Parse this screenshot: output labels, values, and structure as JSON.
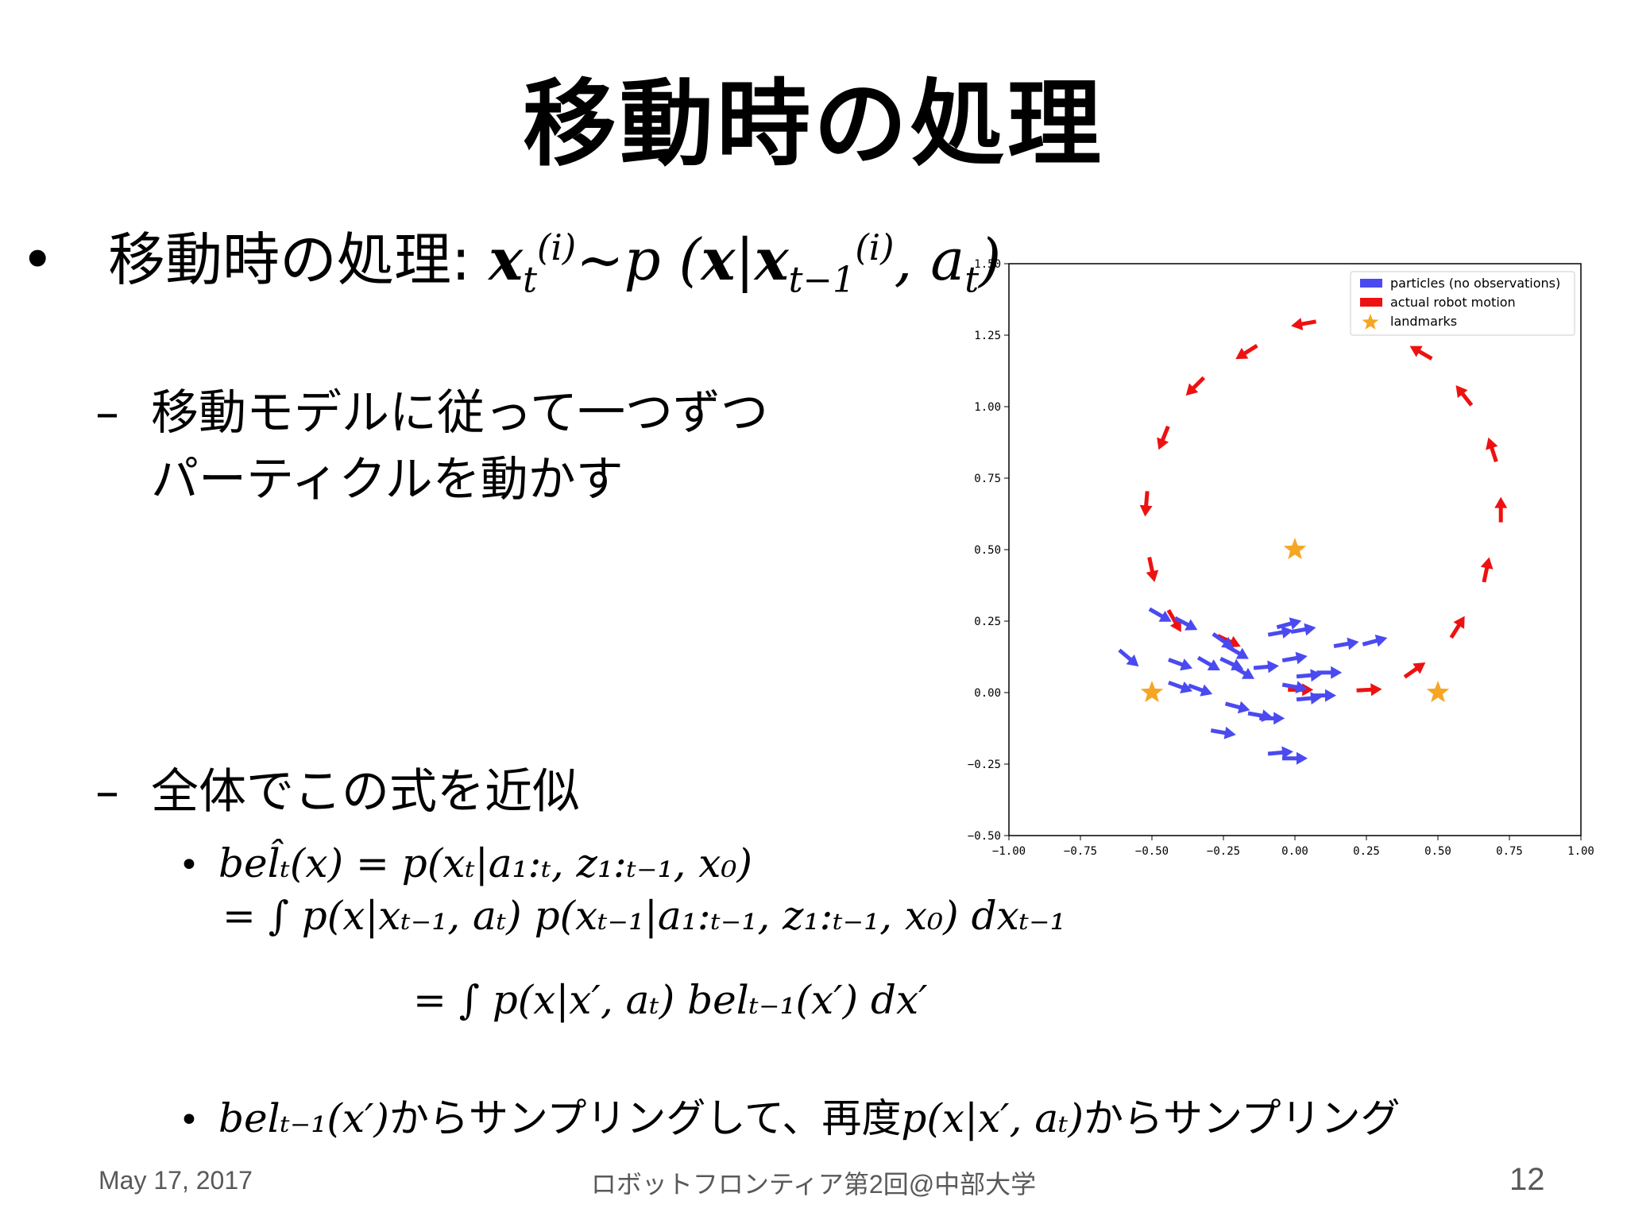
{
  "title": "移動時の処理",
  "bullet1": {
    "bullet": "•",
    "label": "移動時の処理: ",
    "formula": {
      "lhs": "x",
      "lhs_sub": "t",
      "lhs_sup": "(i)",
      "rel": "~p",
      "arg": "x",
      "cond": "x",
      "cond_sub": "t−1",
      "cond_sup": "(i)",
      "a": "a",
      "a_sub": "t"
    }
  },
  "sub1": {
    "dash": "–",
    "line1": "移動モデルに従って一つずつ",
    "line2": "パーティクルを動かす"
  },
  "sub2": {
    "dash": "–",
    "text": "全体でこの式を近似"
  },
  "eq1": {
    "bullet": "•",
    "line1": "bel̂ₜ(x) = p(xₜ|a₁:ₜ, z₁:ₜ₋₁, x₀)",
    "line2": "= ∫ p(x|xₜ₋₁, aₜ) p(xₜ₋₁|a₁:ₜ₋₁, z₁:ₜ₋₁, x₀) dxₜ₋₁",
    "line3": "= ∫ p(x|x′, aₜ) belₜ₋₁(x′) dx′"
  },
  "eq2": {
    "bullet": "•",
    "m1": "belₜ₋₁(x′)",
    "t1": "からサンプリングして、再度",
    "m2": "p(x|x′, aₜ)",
    "t2": "からサンプリング"
  },
  "footer": {
    "date": "May 17, 2017",
    "center": "ロボットフロンティア第2回@中部大学",
    "page": "12"
  },
  "chart_data": {
    "type": "quiver",
    "xlim": [
      -1.0,
      1.0
    ],
    "ylim": [
      -0.5,
      1.5
    ],
    "xticks": [
      "−1.00",
      "−0.75",
      "−0.50",
      "−0.25",
      "0.00",
      "0.25",
      "0.50",
      "0.75",
      "1.00"
    ],
    "yticks": [
      "1.50",
      "1.25",
      "1.00",
      "0.75",
      "0.50",
      "0.25",
      "0.00",
      "−0.25",
      "−0.50"
    ],
    "xtick_values": [
      -1.0,
      -0.75,
      -0.5,
      -0.25,
      0.0,
      0.25,
      0.5,
      0.75,
      1.0
    ],
    "ytick_values": [
      1.5,
      1.25,
      1.0,
      0.75,
      0.5,
      0.25,
      0.0,
      -0.25,
      -0.5
    ],
    "legend": {
      "placement": "top-right",
      "entries": [
        {
          "label": "particles (no observations)",
          "color": "#4a4af0",
          "marker": "rect"
        },
        {
          "label": "actual robot motion",
          "color": "#ee1111",
          "marker": "rect"
        },
        {
          "label": "landmarks",
          "color": "#f5a623",
          "marker": "star"
        }
      ]
    },
    "landmarks": [
      {
        "x": 0.0,
        "y": 0.5
      },
      {
        "x": -0.5,
        "y": 0.0
      },
      {
        "x": 0.5,
        "y": 0.0
      }
    ],
    "robot_motion": [
      {
        "x": 0.02,
        "y": 0.01,
        "angle": 0
      },
      {
        "x": 0.26,
        "y": 0.01,
        "angle": 3
      },
      {
        "x": 0.42,
        "y": 0.08,
        "angle": 35
      },
      {
        "x": 0.57,
        "y": 0.23,
        "angle": 58
      },
      {
        "x": 0.67,
        "y": 0.43,
        "angle": 78
      },
      {
        "x": 0.72,
        "y": 0.64,
        "angle": 90
      },
      {
        "x": 0.69,
        "y": 0.85,
        "angle": 108
      },
      {
        "x": 0.59,
        "y": 1.04,
        "angle": 128
      },
      {
        "x": 0.44,
        "y": 1.19,
        "angle": 150
      },
      {
        "x": 0.25,
        "y": 1.28,
        "angle": 168
      },
      {
        "x": 0.03,
        "y": 1.29,
        "angle": 190
      },
      {
        "x": -0.17,
        "y": 1.19,
        "angle": 212
      },
      {
        "x": -0.35,
        "y": 1.07,
        "angle": 225
      },
      {
        "x": -0.46,
        "y": 0.89,
        "angle": 248
      },
      {
        "x": -0.52,
        "y": 0.66,
        "angle": 265
      },
      {
        "x": -0.5,
        "y": 0.43,
        "angle": 282
      },
      {
        "x": -0.42,
        "y": 0.25,
        "angle": 300
      },
      {
        "x": -0.23,
        "y": 0.18,
        "angle": 335
      }
    ],
    "particles": [
      {
        "x": -0.47,
        "y": 0.27,
        "angle": -30
      },
      {
        "x": -0.38,
        "y": 0.24,
        "angle": -28
      },
      {
        "x": -0.58,
        "y": 0.12,
        "angle": -40
      },
      {
        "x": -0.4,
        "y": 0.1,
        "angle": -20
      },
      {
        "x": -0.3,
        "y": 0.1,
        "angle": -30
      },
      {
        "x": -0.25,
        "y": 0.18,
        "angle": -35
      },
      {
        "x": -0.22,
        "y": 0.1,
        "angle": -25
      },
      {
        "x": -0.2,
        "y": 0.14,
        "angle": -30
      },
      {
        "x": -0.18,
        "y": 0.07,
        "angle": -30
      },
      {
        "x": -0.1,
        "y": 0.09,
        "angle": 5
      },
      {
        "x": -0.05,
        "y": 0.21,
        "angle": 10
      },
      {
        "x": -0.02,
        "y": 0.24,
        "angle": 15
      },
      {
        "x": 0.03,
        "y": 0.22,
        "angle": 10
      },
      {
        "x": 0.0,
        "y": 0.12,
        "angle": 10
      },
      {
        "x": 0.05,
        "y": 0.06,
        "angle": 5
      },
      {
        "x": 0.12,
        "y": 0.07,
        "angle": 0
      },
      {
        "x": 0.18,
        "y": 0.17,
        "angle": 10
      },
      {
        "x": 0.28,
        "y": 0.18,
        "angle": 15
      },
      {
        "x": -0.4,
        "y": 0.02,
        "angle": -20
      },
      {
        "x": -0.33,
        "y": 0.01,
        "angle": -20
      },
      {
        "x": -0.2,
        "y": -0.05,
        "angle": -15
      },
      {
        "x": -0.12,
        "y": -0.08,
        "angle": -10
      },
      {
        "x": -0.08,
        "y": -0.09,
        "angle": 0
      },
      {
        "x": -0.25,
        "y": -0.14,
        "angle": -10
      },
      {
        "x": -0.05,
        "y": -0.21,
        "angle": 5
      },
      {
        "x": 0.0,
        "y": -0.23,
        "angle": 0
      },
      {
        "x": 0.05,
        "y": -0.02,
        "angle": 5
      },
      {
        "x": 0.1,
        "y": -0.01,
        "angle": 0
      },
      {
        "x": 0.0,
        "y": 0.02,
        "angle": -10
      }
    ]
  },
  "colors": {
    "particles": "#4a4af0",
    "robot": "#ee1111",
    "landmark": "#f5a623",
    "footer": "#595959"
  }
}
